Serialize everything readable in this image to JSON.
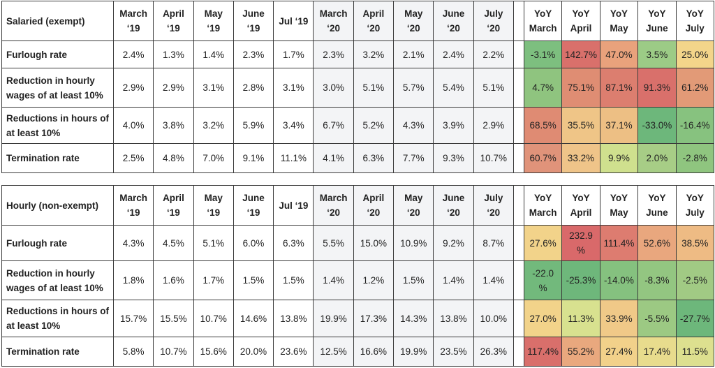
{
  "tables": [
    {
      "header": {
        "label": "Salaried (exempt)",
        "months": [
          "March\n‘19",
          "April\n‘19",
          "May\n‘19",
          "June\n‘19",
          "Jul ‘19",
          "March\n‘20",
          "April\n‘20",
          "May\n‘20",
          "June\n‘20",
          "July\n‘20"
        ],
        "yoy": [
          "YoY\nMarch",
          "YoY\nApril",
          "YoY\nMay",
          "YoY\nJune",
          "YoY\nJuly"
        ]
      },
      "rows": [
        {
          "label": "Furlough rate",
          "months": [
            "2.4%",
            "1.3%",
            "1.4%",
            "2.3%",
            "1.7%",
            "2.3%",
            "3.2%",
            "2.1%",
            "2.4%",
            "2.2%"
          ],
          "yoy": [
            "-3.1%",
            "142.7%",
            "47.0%",
            "3.5%",
            "25.0%"
          ],
          "yoy_colors": [
            "#7dbf7f",
            "#d9706b",
            "#e9a27c",
            "#9ccb86",
            "#f3d58a"
          ]
        },
        {
          "label": "Reduction in hourly wages of at least 10%",
          "months": [
            "2.9%",
            "2.9%",
            "3.1%",
            "2.8%",
            "3.1%",
            "3.0%",
            "5.1%",
            "5.7%",
            "5.4%",
            "5.1%"
          ],
          "yoy": [
            "4.7%",
            "75.1%",
            "87.1%",
            "91.3%",
            "61.2%"
          ],
          "yoy_colors": [
            "#8fc47f",
            "#df8d73",
            "#dc7e6f",
            "#d9706b",
            "#e29a77"
          ]
        },
        {
          "label": "Reductions in hours of at least 10%",
          "months": [
            "4.0%",
            "3.8%",
            "3.2%",
            "5.9%",
            "3.4%",
            "6.7%",
            "5.2%",
            "4.3%",
            "3.9%",
            "2.9%"
          ],
          "yoy": [
            "68.5%",
            "35.5%",
            "37.1%",
            "-33.0%",
            "-16.4%"
          ],
          "yoy_colors": [
            "#df8b73",
            "#efc587",
            "#edbf84",
            "#6db77b",
            "#87c27f"
          ]
        },
        {
          "label": "Termination rate",
          "months": [
            "2.5%",
            "4.8%",
            "7.0%",
            "9.1%",
            "11.1%",
            "4.1%",
            "6.3%",
            "7.7%",
            "9.3%",
            "10.7%"
          ],
          "yoy": [
            "60.7%",
            "33.2%",
            "9.9%",
            "2.0%",
            "-2.8%"
          ],
          "yoy_colors": [
            "#e0937a",
            "#efc489",
            "#cfe08e",
            "#a7cd86",
            "#8fc57f"
          ]
        }
      ]
    },
    {
      "header": {
        "label": "Hourly (non-exempt)",
        "months": [
          "March\n‘19",
          "April\n‘19",
          "May\n‘19",
          "June\n‘19",
          "Jul ‘19",
          "March\n‘20",
          "April\n‘20",
          "May\n‘20",
          "June\n‘20",
          "July\n‘20"
        ],
        "yoy": [
          "YoY\nMarch",
          "YoY\nApril",
          "YoY\nMay",
          "YoY\nJune",
          "YoY\nJuly"
        ]
      },
      "rows": [
        {
          "label": "Furlough rate",
          "months": [
            "4.3%",
            "4.5%",
            "5.1%",
            "6.0%",
            "6.3%",
            "5.5%",
            "15.0%",
            "10.9%",
            "9.2%",
            "8.7%"
          ],
          "yoy": [
            "27.6%",
            "232.9\n%",
            "111.4%",
            "52.6%",
            "38.5%"
          ],
          "yoy_colors": [
            "#f2d38a",
            "#d9696a",
            "#dd7c70",
            "#e9a77e",
            "#eebb84"
          ]
        },
        {
          "label": "Reduction in hourly wages of at least 10%",
          "months": [
            "1.8%",
            "1.6%",
            "1.7%",
            "1.5%",
            "1.5%",
            "1.4%",
            "1.2%",
            "1.5%",
            "1.4%",
            "1.4%"
          ],
          "yoy": [
            "-22.0\n%",
            "-25.3%",
            "-14.0%",
            "-8.3%",
            "-2.5%"
          ],
          "yoy_colors": [
            "#72b97c",
            "#6eb77b",
            "#85c17f",
            "#93c681",
            "#a1ca84"
          ]
        },
        {
          "label": "Reductions in hours of at least 10%",
          "months": [
            "15.7%",
            "15.5%",
            "10.7%",
            "14.6%",
            "13.8%",
            "19.9%",
            "17.3%",
            "14.3%",
            "13.8%",
            "10.0%"
          ],
          "yoy": [
            "27.0%",
            "11.3%",
            "33.9%",
            "-5.5%",
            "-27.7%"
          ],
          "yoy_colors": [
            "#f2d38a",
            "#d8e18f",
            "#f0c988",
            "#9cc983",
            "#6db77b"
          ]
        },
        {
          "label": "Termination rate",
          "months": [
            "5.8%",
            "10.7%",
            "15.6%",
            "20.0%",
            "23.6%",
            "12.5%",
            "16.6%",
            "19.9%",
            "23.5%",
            "26.3%"
          ],
          "yoy": [
            "117.4%",
            "55.2%",
            "27.4%",
            "17.4%",
            "11.5%"
          ],
          "yoy_colors": [
            "#d96f6b",
            "#e9a87e",
            "#f2d18a",
            "#e8dc8d",
            "#dde08f"
          ]
        }
      ]
    }
  ]
}
